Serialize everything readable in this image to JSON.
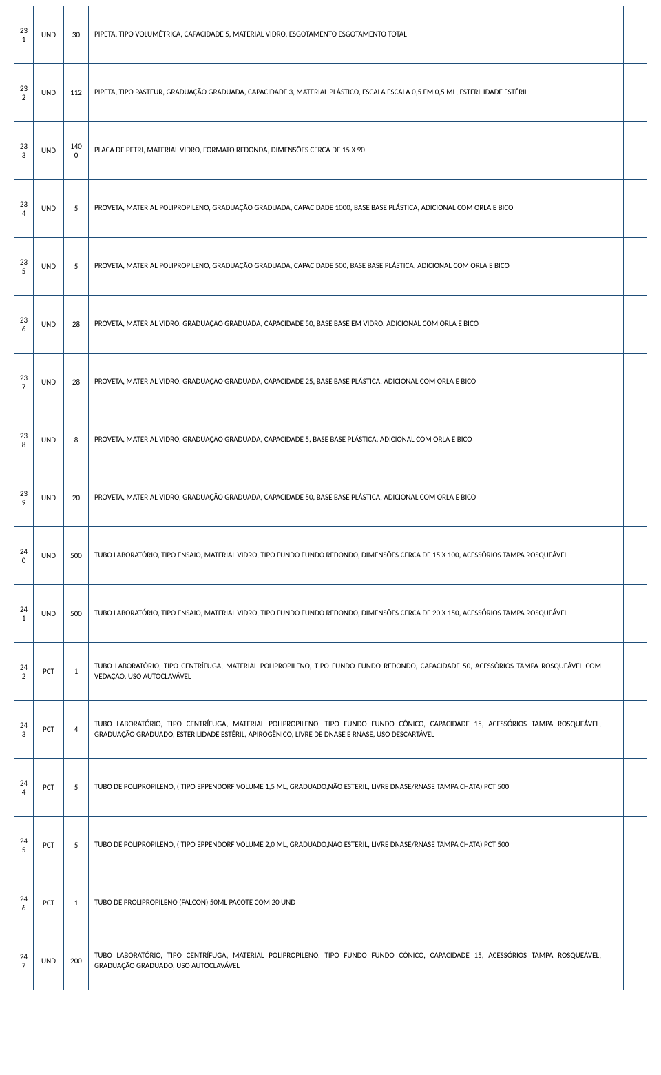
{
  "colors": {
    "border": "#1f4e79",
    "text": "#000000",
    "background": "#ffffff"
  },
  "font": {
    "family": "Calibri",
    "size_pt": 11
  },
  "rows": [
    {
      "id": "231",
      "unit": "UND",
      "qty": "30",
      "desc": "PIPETA, TIPO VOLUMÉTRICA, CAPACIDADE 5, MATERIAL VIDRO, ESGOTAMENTO ESGOTAMENTO TOTAL"
    },
    {
      "id": "232",
      "unit": "UND",
      "qty": "112",
      "desc": "PIPETA, TIPO PASTEUR, GRADUAÇÃO GRADUADA, CAPACIDADE 3, MATERIAL PLÁSTICO, ESCALA ESCALA 0,5 EM 0,5 ML, ESTERILIDADE ESTÉRIL"
    },
    {
      "id": "233",
      "unit": "UND",
      "qty": "1400",
      "desc": "PLACA DE PETRI, MATERIAL VIDRO, FORMATO REDONDA, DIMENSÕES CERCA DE 15 X 90"
    },
    {
      "id": "234",
      "unit": "UND",
      "qty": "5",
      "desc": "PROVETA, MATERIAL POLIPROPILENO, GRADUAÇÃO GRADUADA, CAPACIDADE 1000, BASE BASE PLÁSTICA, ADICIONAL COM ORLA E BICO"
    },
    {
      "id": "235",
      "unit": "UND",
      "qty": "5",
      "desc": "PROVETA, MATERIAL POLIPROPILENO, GRADUAÇÃO GRADUADA, CAPACIDADE 500, BASE BASE PLÁSTICA, ADICIONAL COM ORLA E BICO"
    },
    {
      "id": "236",
      "unit": "UND",
      "qty": "28",
      "desc": "PROVETA, MATERIAL VIDRO, GRADUAÇÃO GRADUADA, CAPACIDADE 50, BASE BASE EM VIDRO, ADICIONAL COM ORLA E BICO"
    },
    {
      "id": "237",
      "unit": "UND",
      "qty": "28",
      "desc": "PROVETA, MATERIAL VIDRO, GRADUAÇÃO GRADUADA, CAPACIDADE 25, BASE BASE PLÁSTICA, ADICIONAL COM ORLA E BICO"
    },
    {
      "id": "238",
      "unit": "UND",
      "qty": "8",
      "desc": "PROVETA, MATERIAL VIDRO, GRADUAÇÃO GRADUADA, CAPACIDADE 5, BASE BASE PLÁSTICA, ADICIONAL COM ORLA E BICO"
    },
    {
      "id": "239",
      "unit": "UND",
      "qty": "20",
      "desc": "PROVETA, MATERIAL VIDRO, GRADUAÇÃO GRADUADA, CAPACIDADE 50, BASE BASE PLÁSTICA, ADICIONAL COM ORLA E BICO"
    },
    {
      "id": "240",
      "unit": "UND",
      "qty": "500",
      "desc": "TUBO LABORATÓRIO, TIPO ENSAIO, MATERIAL VIDRO, TIPO FUNDO FUNDO REDONDO, DIMENSÕES CERCA DE 15 X 100, ACESSÓRIOS TAMPA ROSQUEÁVEL"
    },
    {
      "id": "241",
      "unit": "UND",
      "qty": "500",
      "desc": "TUBO LABORATÓRIO, TIPO ENSAIO, MATERIAL VIDRO, TIPO FUNDO FUNDO REDONDO, DIMENSÕES CERCA DE 20 X 150, ACESSÓRIOS TAMPA ROSQUEÁVEL"
    },
    {
      "id": "242",
      "unit": "PCT",
      "qty": "1",
      "desc": "TUBO LABORATÓRIO, TIPO CENTRÍFUGA, MATERIAL POLIPROPILENO, TIPO FUNDO FUNDO REDONDO, CAPACIDADE 50, ACESSÓRIOS TAMPA ROSQUEÁVEL COM VEDAÇÃO, USO AUTOCLAVÁVEL"
    },
    {
      "id": "243",
      "unit": "PCT",
      "qty": "4",
      "desc": "TUBO LABORATÓRIO, TIPO CENTRÍFUGA, MATERIAL POLIPROPILENO, TIPO FUNDO FUNDO CÔNICO, CAPACIDADE 15, ACESSÓRIOS TAMPA ROSQUEÁVEL, GRADUAÇÃO GRADUADO, ESTERILIDADE ESTÉRIL, APIROGÊNICO, LIVRE DE DNASE E RNASE, USO DESCARTÁVEL"
    },
    {
      "id": "244",
      "unit": "PCT",
      "qty": "5",
      "desc": "TUBO DE POLIPROPILENO, ( TIPO EPPENDORF VOLUME 1,5 ML, GRADUADO,NÃO ESTERIL, LIVRE DNASE/RNASE TAMPA CHATA) PCT 500"
    },
    {
      "id": "245",
      "unit": "PCT",
      "qty": "5",
      "desc": "TUBO DE POLIPROPILENO, ( TIPO EPPENDORF VOLUME 2,0 ML, GRADUADO,NÃO ESTERIL, LIVRE DNASE/RNASE TAMPA CHATA) PCT 500"
    },
    {
      "id": "246",
      "unit": "PCT",
      "qty": "1",
      "desc": "TUBO DE PROLIPROPILENO (FALCON) 50ML PACOTE COM 20 UND"
    },
    {
      "id": "247",
      "unit": "UND",
      "qty": "200",
      "desc": "TUBO LABORATÓRIO, TIPO CENTRÍFUGA, MATERIAL POLIPROPILENO, TIPO FUNDO FUNDO CÔNICO, CAPACIDADE 15, ACESSÓRIOS TAMPA ROSQUEÁVEL, GRADUAÇÃO GRADUADO, USO AUTOCLAVÁVEL"
    }
  ]
}
